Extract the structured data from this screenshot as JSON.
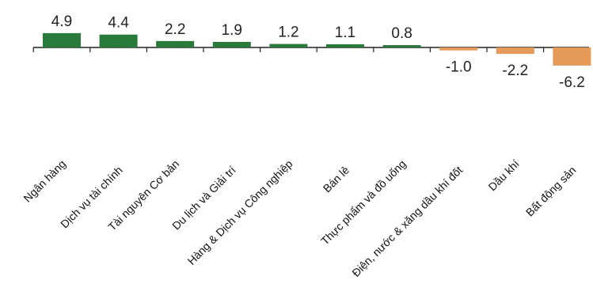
{
  "chart_data": {
    "type": "bar",
    "title": "",
    "xlabel": "",
    "ylabel": "",
    "ylim": [
      -6.2,
      4.9
    ],
    "grid": false,
    "legend": "none",
    "categories": [
      "Ngân hàng",
      "Dịch vụ tài chính",
      "Tài nguyên Cơ bản",
      "Du lịch và Giải trí",
      "Hàng & Dịch vụ Công nghiệp",
      "Bán lẻ",
      "Thực phẩm và đồ uống",
      "Điện, nước & xăng dầu khí đốt",
      "Dầu khí",
      "Bất động sản"
    ],
    "values": [
      4.9,
      4.4,
      2.2,
      1.9,
      1.2,
      1.1,
      0.8,
      -1.0,
      -2.2,
      -6.2
    ],
    "value_labels": [
      "4.9",
      "4.4",
      "2.2",
      "1.9",
      "1.2",
      "1.1",
      "0.8",
      "-1.0",
      "-2.2",
      "-6.2"
    ],
    "colors": {
      "positive": "#2a7a3b",
      "negative": "#e59a5a",
      "axis": "#222222"
    }
  }
}
